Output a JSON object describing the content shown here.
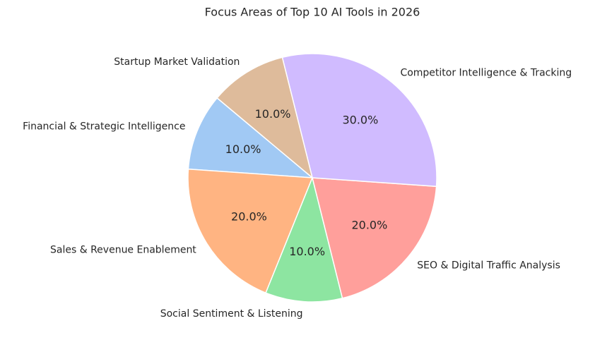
{
  "chart_data": {
    "type": "pie",
    "title": "Focus Areas of Top 10 AI Tools in 2026",
    "categories": [
      "Financial & Strategic Intelligence",
      "Sales & Revenue Enablement",
      "Social Sentiment & Listening",
      "SEO & Digital Traffic Analysis",
      "Competitor Intelligence & Tracking",
      "Startup Market Validation"
    ],
    "values": [
      10,
      20,
      10,
      20,
      30,
      10
    ],
    "value_labels": [
      "10.0%",
      "20.0%",
      "10.0%",
      "20.0%",
      "30.0%",
      "10.0%"
    ],
    "colors": [
      "#a1c9f4",
      "#ffb482",
      "#8de5a1",
      "#ff9f9b",
      "#d0bbff",
      "#debb9b"
    ]
  }
}
